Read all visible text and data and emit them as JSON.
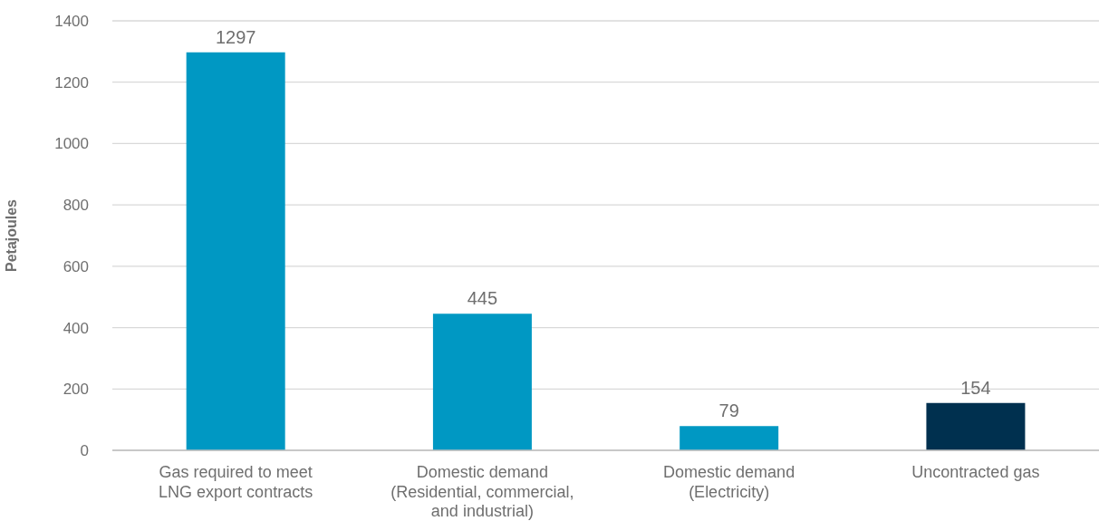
{
  "chart_data": {
    "type": "bar",
    "ylabel": "Petajoules",
    "categories": [
      "Gas required to meet LNG export contracts",
      "Domestic demand (Residential, commercial, and industrial)",
      "Domestic demand (Electricity)",
      "Uncontracted gas"
    ],
    "values": [
      1297,
      445,
      79,
      154
    ],
    "colors": [
      "#0098c3",
      "#0098c3",
      "#0098c3",
      "#00304f"
    ],
    "ylim": [
      0,
      1400
    ],
    "yticks": [
      0,
      200,
      400,
      600,
      800,
      1000,
      1200,
      1400
    ],
    "grid": "y",
    "data_labels": true
  }
}
